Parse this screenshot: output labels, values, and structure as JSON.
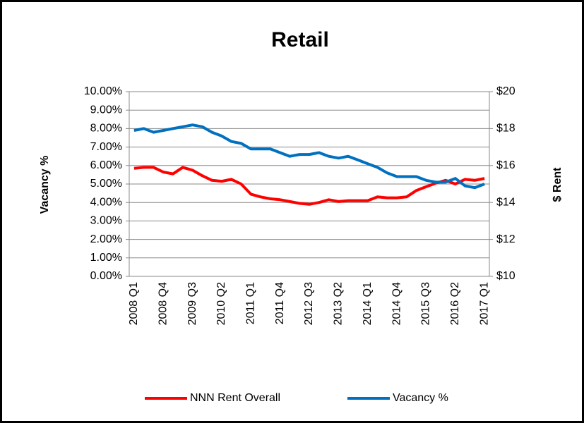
{
  "chart_data": {
    "type": "line",
    "title": "Retail",
    "y_label": "Vacancy %",
    "y2_label": "$ Rent",
    "categories": [
      "2008 Q1",
      null,
      null,
      "2008 Q4",
      null,
      null,
      "2009 Q3",
      null,
      null,
      "2010 Q2",
      null,
      null,
      "2011 Q1",
      null,
      null,
      "2011 Q4",
      null,
      null,
      "2012 Q3",
      null,
      null,
      "2013 Q2",
      null,
      null,
      "2014 Q1",
      null,
      null,
      "2014 Q4",
      null,
      null,
      "2015 Q3",
      null,
      null,
      "2016 Q2",
      null,
      null,
      "2017 Q1"
    ],
    "series": [
      {
        "name": "NNN Rent Overall",
        "color": "#ff0000",
        "axis": "y2",
        "values": [
          15.85,
          15.9,
          15.9,
          15.65,
          15.55,
          15.9,
          15.75,
          15.45,
          15.2,
          15.15,
          15.25,
          15.0,
          14.45,
          14.3,
          14.2,
          14.15,
          14.05,
          13.95,
          13.9,
          14.0,
          14.15,
          14.05,
          14.1,
          14.1,
          14.1,
          14.3,
          14.25,
          14.25,
          14.3,
          14.65,
          14.85,
          15.05,
          15.2,
          15.0,
          15.25,
          15.2,
          15.3
        ]
      },
      {
        "name": "Vacancy %",
        "color": "#0070c0",
        "values": [
          7.9,
          8.0,
          7.8,
          7.9,
          8.0,
          8.1,
          8.2,
          8.1,
          7.8,
          7.6,
          7.3,
          7.2,
          6.9,
          6.9,
          6.9,
          6.7,
          6.5,
          6.6,
          6.6,
          6.7,
          6.5,
          6.4,
          6.5,
          6.3,
          6.1,
          5.9,
          5.6,
          5.4,
          5.4,
          5.4,
          5.2,
          5.1,
          5.1,
          5.3,
          4.9,
          4.8,
          5.0
        ]
      }
    ],
    "ylim": [
      0,
      10
    ],
    "yticks": [
      {
        "value": 0,
        "label": "0.00%"
      },
      {
        "value": 1,
        "label": "1.00%"
      },
      {
        "value": 2,
        "label": "2.00%"
      },
      {
        "value": 3,
        "label": "3.00%"
      },
      {
        "value": 4,
        "label": "4.00%"
      },
      {
        "value": 5,
        "label": "5.00%"
      },
      {
        "value": 6,
        "label": "6.00%"
      },
      {
        "value": 7,
        "label": "7.00%"
      },
      {
        "value": 8,
        "label": "8.00%"
      },
      {
        "value": 9,
        "label": "9.00%"
      },
      {
        "value": 10,
        "label": "10.00%"
      }
    ],
    "y2lim": [
      10,
      20
    ],
    "y2ticks": [
      {
        "value": 10,
        "label": "$10"
      },
      {
        "value": 12,
        "label": "$12"
      },
      {
        "value": 14,
        "label": "$14"
      },
      {
        "value": 16,
        "label": "$16"
      },
      {
        "value": 18,
        "label": "$18"
      },
      {
        "value": 20,
        "label": "$20"
      }
    ],
    "grid": true,
    "legend": "bottom"
  }
}
